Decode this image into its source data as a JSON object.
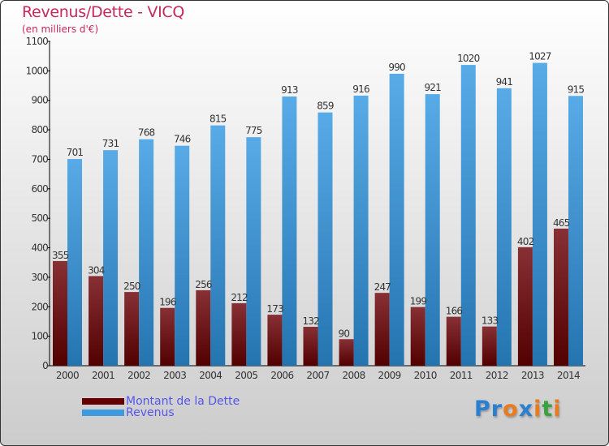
{
  "chart_data": {
    "type": "bar",
    "title": "Revenus/Dette - VICQ",
    "subtitle": "(en milliers d'€)",
    "xlabel": "",
    "ylabel": "",
    "ylim": [
      0,
      1100
    ],
    "yticks": [
      0,
      100,
      200,
      300,
      400,
      500,
      600,
      700,
      800,
      900,
      1000,
      1100
    ],
    "categories": [
      "2000",
      "2001",
      "2002",
      "2003",
      "2004",
      "2005",
      "2006",
      "2007",
      "2008",
      "2009",
      "2010",
      "2011",
      "2012",
      "2013",
      "2014"
    ],
    "series": [
      {
        "name": "Montant de la Dette",
        "color": "#6a1010",
        "values": [
          355,
          304,
          250,
          196,
          256,
          212,
          173,
          132,
          90,
          247,
          199,
          166,
          133,
          402,
          465
        ]
      },
      {
        "name": "Revenus",
        "color": "#3d9ade",
        "values": [
          701,
          731,
          768,
          746,
          815,
          775,
          913,
          859,
          916,
          990,
          921,
          1020,
          941,
          1027,
          915
        ]
      }
    ],
    "legend_position": "bottom-left",
    "grid": false
  },
  "logo": {
    "text": "Proxiti",
    "letters": [
      "P",
      "r",
      "o",
      "x",
      "i",
      "t",
      "i"
    ],
    "colors": [
      "#2a7fd0",
      "#2a7fd0",
      "#e87a20",
      "#2a7fd0",
      "#e87a20",
      "#3aa040",
      "#e87a20"
    ]
  }
}
